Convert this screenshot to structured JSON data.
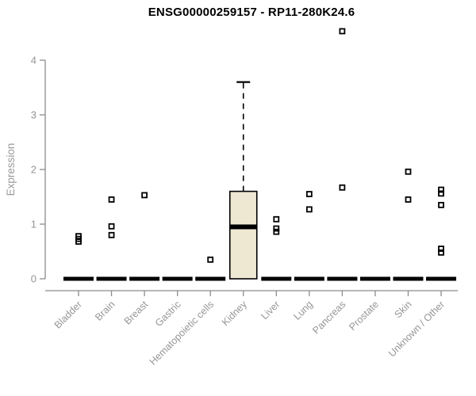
{
  "chart_data": {
    "type": "boxplot",
    "title": "ENSG00000259157 - RP11-280K24.6",
    "ylabel": "Expression",
    "xlabel": "",
    "ylim": [
      0,
      4
    ],
    "yticks": [
      0,
      1,
      2,
      3,
      4
    ],
    "grid": false,
    "legend": "none",
    "categories": [
      "Bladder",
      "Brain",
      "Breast",
      "Gastric",
      "Hematopoietic cells",
      "Kidney",
      "Liver",
      "Lung",
      "Pancreas",
      "Prostate",
      "Skin",
      "Unknown / Other"
    ],
    "boxes": [
      {
        "category": "Bladder",
        "whisker_low": 0,
        "q1": 0,
        "median": 0,
        "q3": 0,
        "whisker_high": 0,
        "points": [
          0.78,
          0.73,
          0.68
        ]
      },
      {
        "category": "Brain",
        "whisker_low": 0,
        "q1": 0,
        "median": 0,
        "q3": 0,
        "whisker_high": 0,
        "points": [
          1.45,
          0.96,
          0.8
        ]
      },
      {
        "category": "Breast",
        "whisker_low": 0,
        "q1": 0,
        "median": 0,
        "q3": 0,
        "whisker_high": 0,
        "points": [
          1.53
        ]
      },
      {
        "category": "Gastric",
        "whisker_low": 0,
        "q1": 0,
        "median": 0,
        "q3": 0,
        "whisker_high": 0,
        "points": []
      },
      {
        "category": "Hematopoietic cells",
        "whisker_low": 0,
        "q1": 0,
        "median": 0,
        "q3": 0,
        "whisker_high": 0,
        "points": [
          0.35
        ]
      },
      {
        "category": "Kidney",
        "whisker_low": 0,
        "q1": 0,
        "median": 0.95,
        "q3": 1.6,
        "whisker_high": 3.6,
        "points": []
      },
      {
        "category": "Liver",
        "whisker_low": 0,
        "q1": 0,
        "median": 0,
        "q3": 0,
        "whisker_high": 0,
        "points": [
          1.09,
          0.92,
          0.86
        ]
      },
      {
        "category": "Lung",
        "whisker_low": 0,
        "q1": 0,
        "median": 0,
        "q3": 0,
        "whisker_high": 0,
        "points": [
          1.55,
          1.27
        ]
      },
      {
        "category": "Pancreas",
        "whisker_low": 0,
        "q1": 0,
        "median": 0,
        "q3": 0,
        "whisker_high": 0,
        "points": [
          4.53,
          1.67
        ]
      },
      {
        "category": "Prostate",
        "whisker_low": 0,
        "q1": 0,
        "median": 0,
        "q3": 0,
        "whisker_high": 0,
        "points": []
      },
      {
        "category": "Skin",
        "whisker_low": 0,
        "q1": 0,
        "median": 0,
        "q3": 0,
        "whisker_high": 0,
        "points": [
          1.96,
          1.45
        ]
      },
      {
        "category": "Unknown / Other",
        "whisker_low": 0,
        "q1": 0,
        "median": 0,
        "q3": 0,
        "whisker_high": 0,
        "points": [
          1.63,
          1.56,
          1.35,
          0.55,
          0.48
        ]
      }
    ],
    "colors": {
      "background": "#FFFFFF",
      "title": "#000000",
      "axis_line": "#8C8C8C",
      "tick_label": "#969696",
      "category_label": "#969696",
      "box_fill": "#EEE8D3",
      "box_stroke": "#000000",
      "median": "#000000",
      "whisker": "#000000",
      "point_stroke": "#000000"
    },
    "point_marker": "open-square",
    "whisker_style": "dashed"
  }
}
